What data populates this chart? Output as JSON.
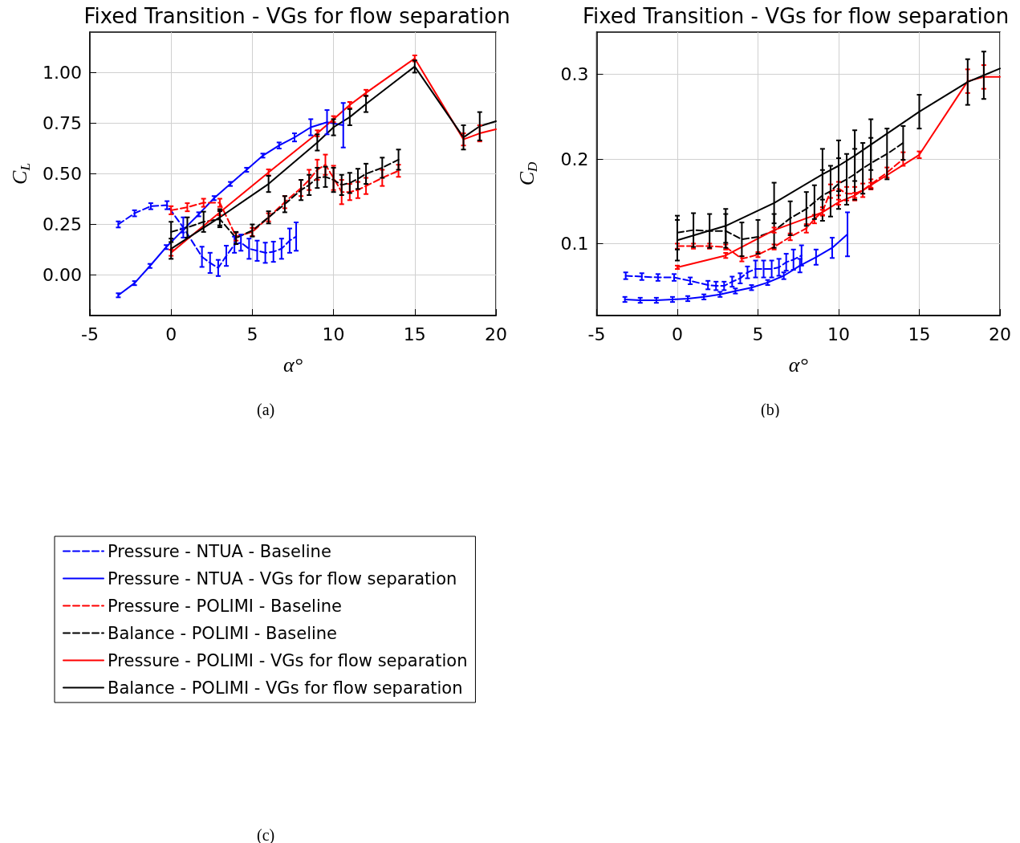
{
  "chart_data": [
    {
      "type": "line",
      "title": "Fixed Transition - VGs for flow separation",
      "xlabel": "α°",
      "ylabel": "C$_{L}$",
      "annotations": [
        "(a)",
        "(c)"
      ],
      "xlim": [
        -5,
        20
      ],
      "xticks": [
        -5,
        0,
        5,
        10,
        15,
        20
      ],
      "ylim": [
        -0.2,
        1.2
      ],
      "yticks": [
        {
          "value": 0,
          "label": "0.00"
        },
        {
          "value": 0.25,
          "label": "0.25"
        },
        {
          "value": 0.5,
          "label": "0.50"
        },
        {
          "value": 0.75,
          "label": "0.75"
        },
        {
          "value": 1,
          "label": "1.00"
        }
      ],
      "grid": true,
      "legend": "bottom",
      "marker": "none",
      "series": [
        {
          "name": "Pressure - NTUA - Baseline",
          "color": "#0000ff",
          "line_style": "dashed",
          "x": [
            -3.25,
            -2.25,
            -1.25,
            -0.25,
            0.75,
            1.9,
            2.4,
            2.9,
            3.4,
            3.9,
            4.3,
            4.8,
            5.3,
            5.8,
            6.3,
            6.8,
            7.3,
            7.7
          ],
          "values": [
            0.25,
            0.305,
            0.34,
            0.345,
            0.235,
            0.09,
            0.06,
            0.035,
            0.095,
            0.15,
            0.16,
            0.13,
            0.12,
            0.11,
            0.115,
            0.13,
            0.17,
            0.19
          ],
          "errors": [
            0.015,
            0.015,
            0.015,
            0.02,
            0.05,
            0.05,
            0.05,
            0.04,
            0.05,
            0.04,
            0.04,
            0.05,
            0.05,
            0.05,
            0.05,
            0.05,
            0.06,
            0.07
          ]
        },
        {
          "name": "Pressure - NTUA - VGs for flow separation",
          "color": "#0000ff",
          "line_style": "solid",
          "x": [
            -3.25,
            -2.25,
            -1.3,
            -0.3,
            0.7,
            1.7,
            2.65,
            3.65,
            4.65,
            5.65,
            6.65,
            7.6,
            8.6,
            9.6,
            10.6
          ],
          "values": [
            -0.1,
            -0.04,
            0.045,
            0.138,
            0.22,
            0.3,
            0.38,
            0.45,
            0.52,
            0.59,
            0.64,
            0.68,
            0.73,
            0.755,
            0.74
          ],
          "errors": [
            0.01,
            0.01,
            0.01,
            0.01,
            0.01,
            0.01,
            0.01,
            0.01,
            0.01,
            0.01,
            0.015,
            0.02,
            0.04,
            0.06,
            0.11
          ]
        },
        {
          "name": "Pressure - POLIMI - Baseline",
          "color": "#ff0000",
          "line_style": "dashed",
          "x": [
            0,
            1,
            2,
            3,
            4,
            5,
            6,
            7,
            8,
            8.5,
            9,
            9.5,
            10,
            10.5,
            11,
            11.5,
            12,
            13,
            14
          ],
          "values": [
            0.32,
            0.335,
            0.357,
            0.357,
            0.19,
            0.213,
            0.285,
            0.36,
            0.43,
            0.47,
            0.52,
            0.545,
            0.48,
            0.41,
            0.41,
            0.42,
            0.44,
            0.48,
            0.515
          ],
          "errors": [
            0.02,
            0.02,
            0.02,
            0.02,
            0.02,
            0.02,
            0.02,
            0.03,
            0.04,
            0.05,
            0.05,
            0.05,
            0.06,
            0.06,
            0.04,
            0.04,
            0.04,
            0.04,
            0.03
          ]
        },
        {
          "name": "Balance - POLIMI - Baseline",
          "color": "#000000",
          "line_style": "dashed",
          "x": [
            0,
            1,
            2,
            3,
            4,
            5,
            6,
            7,
            8,
            8.5,
            9,
            9.5,
            10,
            10.5,
            11,
            11.5,
            12,
            13,
            14
          ],
          "values": [
            0.213,
            0.235,
            0.263,
            0.276,
            0.183,
            0.22,
            0.285,
            0.35,
            0.42,
            0.445,
            0.48,
            0.485,
            0.47,
            0.445,
            0.455,
            0.475,
            0.5,
            0.53,
            0.57
          ],
          "errors": [
            0.05,
            0.05,
            0.05,
            0.04,
            0.03,
            0.03,
            0.03,
            0.04,
            0.05,
            0.05,
            0.05,
            0.05,
            0.06,
            0.05,
            0.05,
            0.05,
            0.05,
            0.05,
            0.05
          ]
        },
        {
          "name": "Pressure - POLIMI - VGs for flow separation",
          "color": "#ff0000",
          "line_style": "solid",
          "x": [
            0,
            3,
            6,
            9,
            10,
            11,
            12,
            15,
            18,
            19,
            20
          ],
          "values": [
            0.11,
            0.31,
            0.507,
            0.7,
            0.77,
            0.84,
            0.9,
            1.07,
            0.67,
            0.7,
            0.72
          ],
          "errors": [
            0.015,
            0.015,
            0.015,
            0.015,
            0.015,
            0.015,
            0.015,
            0.015,
            0.03,
            0.04,
            null
          ]
        },
        {
          "name": "Balance - POLIMI - VGs for flow separation",
          "color": "#000000",
          "line_style": "solid",
          "x": [
            0,
            3,
            6,
            9,
            10,
            11,
            12,
            15,
            18,
            19,
            20
          ],
          "values": [
            0.13,
            0.285,
            0.45,
            0.655,
            0.73,
            0.78,
            0.845,
            1.03,
            0.68,
            0.735,
            0.76
          ],
          "errors": [
            0.05,
            0.04,
            0.04,
            0.04,
            0.04,
            0.04,
            0.04,
            0.03,
            0.06,
            0.07,
            null
          ]
        }
      ]
    },
    {
      "type": "line",
      "title": "Fixed Transition - VGs for flow separation",
      "xlabel": "α°",
      "ylabel": "C$_{D}$",
      "annotations": [
        "(b)"
      ],
      "xlim": [
        -5,
        20
      ],
      "xticks": [
        -5,
        0,
        5,
        10,
        15,
        20
      ],
      "ylim": [
        0.015,
        0.35
      ],
      "yticks": [
        0.1,
        0.2,
        0.3
      ],
      "grid": true,
      "marker": "none",
      "series": [
        {
          "color": "#0000ff",
          "line_style": "dashed",
          "x": [
            -3.2,
            -2.2,
            -1.2,
            -0.2,
            0.8,
            1.9,
            2.4,
            2.9,
            3.4,
            3.9,
            4.35,
            4.85,
            5.35,
            5.85,
            6.3,
            6.75,
            7.2,
            7.7
          ],
          "values": [
            0.062,
            0.061,
            0.06,
            0.06,
            0.056,
            0.051,
            0.05,
            0.05,
            0.055,
            0.059,
            0.066,
            0.07,
            0.07,
            0.07,
            0.072,
            0.078,
            0.081,
            0.086
          ],
          "errors": [
            0.004,
            0.004,
            0.004,
            0.004,
            0.004,
            0.005,
            0.005,
            0.005,
            0.006,
            0.006,
            0.007,
            0.01,
            0.01,
            0.01,
            0.01,
            0.01,
            0.012,
            0.012
          ]
        },
        {
          "color": "#0000ff",
          "line_style": "solid",
          "x": [
            -3.25,
            -2.3,
            -1.3,
            -0.3,
            0.65,
            1.65,
            2.65,
            3.6,
            4.6,
            5.6,
            6.6,
            7.6,
            8.6,
            9.6,
            10.55
          ],
          "values": [
            0.034,
            0.033,
            0.033,
            0.034,
            0.035,
            0.037,
            0.04,
            0.044,
            0.048,
            0.054,
            0.062,
            0.074,
            0.084,
            0.095,
            0.111
          ],
          "errors": [
            0.003,
            0.003,
            0.003,
            0.003,
            0.003,
            0.003,
            0.003,
            0.003,
            0.003,
            0.003,
            0.004,
            0.008,
            0.009,
            0.012,
            0.026
          ]
        },
        {
          "color": "#ff0000",
          "line_style": "dashed",
          "x": [
            0,
            1,
            2,
            3,
            4,
            5,
            6,
            7,
            8,
            8.5,
            9,
            9.5,
            10,
            10.5,
            11,
            11.5,
            12,
            13,
            14
          ],
          "values": [
            0.097,
            0.097,
            0.097,
            0.096,
            0.082,
            0.087,
            0.096,
            0.108,
            0.118,
            0.129,
            0.138,
            0.162,
            0.165,
            0.159,
            0.159,
            0.163,
            0.17,
            0.184,
            0.2
          ],
          "errors": [
            0.003,
            0.003,
            0.003,
            0.003,
            0.003,
            0.003,
            0.003,
            0.004,
            0.005,
            0.005,
            0.005,
            0.008,
            0.008,
            0.008,
            0.008,
            0.008,
            0.006,
            0.006,
            0.008
          ]
        },
        {
          "color": "#000000",
          "line_style": "dashed",
          "x": [
            0,
            1,
            2,
            3,
            4,
            5,
            6,
            7,
            8,
            8.5,
            9,
            9.5,
            10,
            10.5,
            11,
            11.5,
            12,
            13,
            14
          ],
          "values": [
            0.113,
            0.116,
            0.115,
            0.115,
            0.105,
            0.108,
            0.115,
            0.13,
            0.141,
            0.149,
            0.157,
            0.162,
            0.171,
            0.176,
            0.182,
            0.189,
            0.195,
            0.206,
            0.219
          ],
          "errors": [
            0.02,
            0.02,
            0.02,
            0.02,
            0.02,
            0.02,
            0.02,
            0.02,
            0.02,
            0.02,
            0.03,
            0.03,
            0.03,
            0.03,
            0.03,
            0.03,
            0.03,
            0.03,
            0.02
          ]
        },
        {
          "color": "#ff0000",
          "line_style": "solid",
          "x": [
            0,
            3,
            6,
            9,
            10,
            11,
            12,
            15,
            18,
            19,
            20
          ],
          "values": [
            0.072,
            0.086,
            0.116,
            0.137,
            0.149,
            0.157,
            0.169,
            0.205,
            0.292,
            0.297,
            0.297
          ],
          "errors": [
            0.002,
            0.003,
            0.003,
            0.003,
            0.003,
            0.003,
            0.003,
            0.004,
            0.014,
            0.014,
            null
          ]
        },
        {
          "color": "#000000",
          "line_style": "solid",
          "x": [
            0,
            3,
            6,
            9,
            10,
            11,
            12,
            15,
            18,
            19,
            20
          ],
          "values": [
            0.104,
            0.121,
            0.148,
            0.182,
            0.192,
            0.204,
            0.217,
            0.256,
            0.291,
            0.299,
            0.307
          ],
          "errors": [
            0.024,
            0.02,
            0.024,
            0.03,
            0.03,
            0.03,
            0.03,
            0.02,
            0.027,
            0.028,
            null
          ]
        }
      ]
    }
  ]
}
